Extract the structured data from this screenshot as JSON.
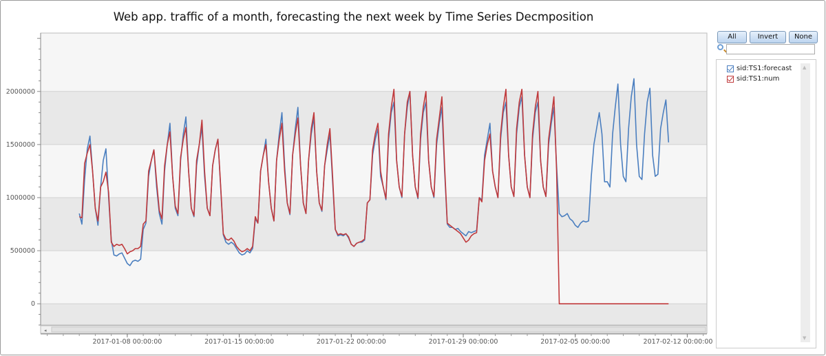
{
  "title": "Web app. traffic of a month, forecasting the next week by Time Series Decmposition",
  "controls": {
    "all_label": "All",
    "invert_label": "Invert",
    "none_label": "None",
    "search_value": ""
  },
  "legend": [
    {
      "label": "sid:TS1:forecast",
      "color": "#4a7ebf",
      "checked": true
    },
    {
      "label": "sid:TS1:num",
      "color": "#c0393b",
      "checked": true
    }
  ],
  "chart_data": {
    "type": "line",
    "title": "Web app. traffic of a month, forecasting the next week by Time Series Decmposition",
    "xlabel": "",
    "ylabel": "",
    "ylim": [
      -200000,
      2550000
    ],
    "xlim": [
      "2017-01-02 14:00:00",
      "2017-02-13 05:30:00"
    ],
    "yticks": [
      0,
      500000,
      1000000,
      1500000,
      2000000
    ],
    "ytick_labels": [
      "0",
      "500000",
      "1000000",
      "1500000",
      "2000000"
    ],
    "xticks": [
      "2017-01-08 00:00:00",
      "2017-01-15 00:00:00",
      "2017-01-22 00:00:00",
      "2017-01-29 00:00:00",
      "2017-02-05 00:00:00",
      "2017-02-12 00:00:00"
    ],
    "grid": "alternating horizontal bands",
    "legend_position": "right",
    "sample_hours": [
      0,
      4,
      8,
      12,
      16,
      20
    ],
    "days": [
      "2017-01-05",
      "2017-01-06",
      "2017-01-07",
      "2017-01-08",
      "2017-01-09",
      "2017-01-10",
      "2017-01-11",
      "2017-01-12",
      "2017-01-13",
      "2017-01-14",
      "2017-01-15",
      "2017-01-16",
      "2017-01-17",
      "2017-01-18",
      "2017-01-19",
      "2017-01-20",
      "2017-01-21",
      "2017-01-22",
      "2017-01-23",
      "2017-01-24",
      "2017-01-25",
      "2017-01-26",
      "2017-01-27",
      "2017-01-28",
      "2017-01-29",
      "2017-01-30",
      "2017-01-31",
      "2017-02-01",
      "2017-02-02",
      "2017-02-03",
      "2017-02-04",
      "2017-02-05",
      "2017-02-06",
      "2017-02-07",
      "2017-02-08",
      "2017-02-09",
      "2017-02-10"
    ],
    "series": [
      {
        "name": "sid:TS1:forecast",
        "color": "#4a7ebf",
        "values": [
          [
            850000,
            750000,
            1170000,
            1460000,
            1580000,
            1250000
          ],
          [
            900000,
            740000,
            1100000,
            1350000,
            1460000,
            1000000
          ],
          [
            600000,
            460000,
            450000,
            470000,
            480000,
            430000
          ],
          [
            380000,
            360000,
            400000,
            410000,
            400000,
            420000
          ],
          [
            700000,
            760000,
            1200000,
            1350000,
            1450000,
            1100000
          ],
          [
            850000,
            750000,
            1250000,
            1500000,
            1700000,
            1200000
          ],
          [
            900000,
            830000,
            1350000,
            1600000,
            1760000,
            1250000
          ],
          [
            900000,
            820000,
            1300000,
            1500000,
            1660000,
            1200000
          ],
          [
            900000,
            830000,
            1300000,
            1450000,
            1550000,
            1100000
          ],
          [
            650000,
            580000,
            560000,
            580000,
            560000,
            520000
          ],
          [
            480000,
            460000,
            470000,
            500000,
            480000,
            520000
          ],
          [
            800000,
            760000,
            1250000,
            1400000,
            1550000,
            1150000
          ],
          [
            900000,
            780000,
            1350000,
            1600000,
            1800000,
            1300000
          ],
          [
            950000,
            840000,
            1400000,
            1650000,
            1850000,
            1300000
          ],
          [
            950000,
            850000,
            1350000,
            1600000,
            1750000,
            1250000
          ],
          [
            950000,
            870000,
            1300000,
            1450000,
            1600000,
            1150000
          ],
          [
            700000,
            640000,
            650000,
            640000,
            660000,
            620000
          ],
          [
            560000,
            540000,
            570000,
            580000,
            580000,
            600000
          ],
          [
            950000,
            980000,
            1400000,
            1550000,
            1650000,
            1200000
          ],
          [
            1100000,
            980000,
            1550000,
            1800000,
            1900000,
            1350000
          ],
          [
            1100000,
            1000000,
            1600000,
            1850000,
            2000000,
            1400000
          ],
          [
            1100000,
            990000,
            1550000,
            1800000,
            1900000,
            1350000
          ],
          [
            1100000,
            1000000,
            1500000,
            1700000,
            1850000,
            1250000
          ],
          [
            750000,
            720000,
            720000,
            700000,
            710000,
            680000
          ],
          [
            660000,
            640000,
            680000,
            670000,
            680000,
            690000
          ],
          [
            1000000,
            980000,
            1400000,
            1550000,
            1700000,
            1250000
          ],
          [
            1100000,
            1000000,
            1550000,
            1800000,
            1900000,
            1400000
          ],
          [
            1100000,
            1010000,
            1600000,
            1850000,
            1950000,
            1400000
          ],
          [
            1100000,
            1000000,
            1550000,
            1800000,
            1900000,
            1350000
          ],
          [
            1100000,
            1010000,
            1500000,
            1700000,
            1850000,
            1300000
          ],
          [
            850000,
            820000,
            830000,
            850000,
            800000,
            780000
          ],
          [
            740000,
            720000,
            760000,
            780000,
            770000,
            780000
          ],
          [
            1200000,
            1500000,
            1650000,
            1800000,
            1600000,
            1150000
          ],
          [
            1150000,
            1100000,
            1600000,
            1850000,
            2070000,
            1500000
          ],
          [
            1200000,
            1150000,
            1650000,
            1950000,
            2120000,
            1500000
          ],
          [
            1200000,
            1170000,
            1600000,
            1900000,
            2030000,
            1400000
          ],
          [
            1200000,
            1220000,
            1650000,
            1800000,
            1920000,
            1520000
          ]
        ]
      },
      {
        "name": "sid:TS1:num",
        "color": "#c0393b",
        "values": [
          [
            820000,
            810000,
            1320000,
            1420000,
            1500000,
            1250000
          ],
          [
            900000,
            780000,
            1100000,
            1150000,
            1240000,
            1050000
          ],
          [
            580000,
            540000,
            560000,
            550000,
            560000,
            520000
          ],
          [
            470000,
            490000,
            500000,
            520000,
            520000,
            540000
          ],
          [
            750000,
            780000,
            1250000,
            1350000,
            1450000,
            1150000
          ],
          [
            880000,
            800000,
            1300000,
            1500000,
            1620000,
            1200000
          ],
          [
            920000,
            850000,
            1380000,
            1550000,
            1660000,
            1250000
          ],
          [
            900000,
            830000,
            1350000,
            1500000,
            1730000,
            1250000
          ],
          [
            900000,
            830000,
            1300000,
            1450000,
            1550000,
            1120000
          ],
          [
            660000,
            610000,
            600000,
            620000,
            590000,
            540000
          ],
          [
            510000,
            490000,
            500000,
            520000,
            500000,
            540000
          ],
          [
            820000,
            760000,
            1250000,
            1400000,
            1500000,
            1150000
          ],
          [
            900000,
            780000,
            1350000,
            1550000,
            1700000,
            1250000
          ],
          [
            950000,
            850000,
            1400000,
            1600000,
            1750000,
            1300000
          ],
          [
            950000,
            850000,
            1350000,
            1650000,
            1800000,
            1250000
          ],
          [
            950000,
            880000,
            1300000,
            1500000,
            1650000,
            1200000
          ],
          [
            700000,
            650000,
            660000,
            650000,
            660000,
            630000
          ],
          [
            560000,
            540000,
            570000,
            580000,
            590000,
            610000
          ],
          [
            950000,
            980000,
            1450000,
            1600000,
            1700000,
            1250000
          ],
          [
            1100000,
            990000,
            1600000,
            1850000,
            2020000,
            1350000
          ],
          [
            1100000,
            1010000,
            1600000,
            1900000,
            2000000,
            1400000
          ],
          [
            1100000,
            1000000,
            1600000,
            1850000,
            2000000,
            1350000
          ],
          [
            1100000,
            1010000,
            1550000,
            1750000,
            1950000,
            1300000
          ],
          [
            760000,
            740000,
            720000,
            700000,
            680000,
            660000
          ],
          [
            620000,
            580000,
            600000,
            640000,
            660000,
            670000
          ],
          [
            1000000,
            960000,
            1350000,
            1500000,
            1600000,
            1250000
          ],
          [
            1100000,
            1000000,
            1600000,
            1850000,
            2020000,
            1400000
          ],
          [
            1100000,
            1010000,
            1650000,
            1900000,
            2020000,
            1400000
          ],
          [
            1100000,
            1000000,
            1600000,
            1850000,
            2000000,
            1350000
          ],
          [
            1100000,
            1010000,
            1550000,
            1750000,
            1950000,
            1250000
          ],
          [
            0,
            0,
            0,
            0,
            0,
            0
          ],
          [
            0,
            0,
            0,
            0,
            0,
            0
          ],
          [
            0,
            0,
            0,
            0,
            0,
            0
          ],
          [
            0,
            0,
            0,
            0,
            0,
            0
          ],
          [
            0,
            0,
            0,
            0,
            0,
            0
          ],
          [
            0,
            0,
            0,
            0,
            0,
            0
          ],
          [
            0,
            0,
            0,
            0,
            0,
            0
          ]
        ]
      }
    ]
  }
}
